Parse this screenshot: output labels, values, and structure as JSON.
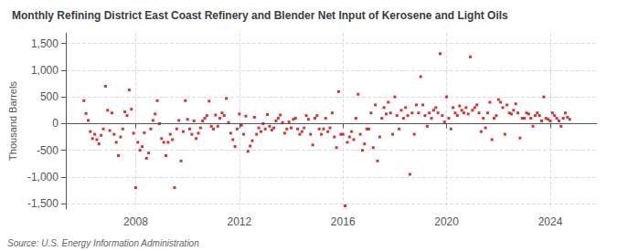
{
  "chart_data": {
    "type": "scatter",
    "title": "Monthly Refining District East Coast Refinery and Blender Net Input of Kerosene and Light Oils",
    "ylabel": "Thousand Barrels",
    "annotation": "Source: U.S. Energy Information Administration",
    "color": "#cc0000",
    "marker": "square",
    "grid": true,
    "xlim": [
      2005.3,
      2025.8
    ],
    "xticks": [
      2008,
      2012,
      2016,
      2020,
      2024
    ],
    "ylim": [
      -1600,
      1700
    ],
    "yticks": [
      {
        "value": -1500,
        "label": "-1,500"
      },
      {
        "value": -1000,
        "label": "-1,000"
      },
      -500,
      0,
      500,
      {
        "value": 1000,
        "label": "1,000"
      },
      {
        "value": 1500,
        "label": "1,500"
      }
    ],
    "x": [
      2006.0,
      2006.083,
      2006.167,
      2006.25,
      2006.333,
      2006.417,
      2006.5,
      2006.583,
      2006.667,
      2006.75,
      2006.833,
      2006.917,
      2007.0,
      2007.083,
      2007.167,
      2007.25,
      2007.333,
      2007.417,
      2007.5,
      2007.583,
      2007.667,
      2007.75,
      2007.833,
      2007.917,
      2008.0,
      2008.083,
      2008.167,
      2008.25,
      2008.333,
      2008.417,
      2008.5,
      2008.583,
      2008.667,
      2008.75,
      2008.833,
      2008.917,
      2009.0,
      2009.083,
      2009.167,
      2009.25,
      2009.333,
      2009.417,
      2009.5,
      2009.583,
      2009.667,
      2009.75,
      2009.833,
      2009.917,
      2010.0,
      2010.083,
      2010.167,
      2010.25,
      2010.333,
      2010.417,
      2010.5,
      2010.583,
      2010.667,
      2010.75,
      2010.833,
      2010.917,
      2011.0,
      2011.083,
      2011.167,
      2011.25,
      2011.333,
      2011.417,
      2011.5,
      2011.583,
      2011.667,
      2011.75,
      2011.833,
      2011.917,
      2012.0,
      2012.083,
      2012.167,
      2012.25,
      2012.333,
      2012.417,
      2012.5,
      2012.583,
      2012.667,
      2012.75,
      2012.833,
      2012.917,
      2013.0,
      2013.083,
      2013.167,
      2013.25,
      2013.333,
      2013.417,
      2013.5,
      2013.583,
      2013.667,
      2013.75,
      2013.833,
      2013.917,
      2014.0,
      2014.083,
      2014.167,
      2014.25,
      2014.333,
      2014.417,
      2014.5,
      2014.583,
      2014.667,
      2014.75,
      2014.833,
      2014.917,
      2015.0,
      2015.083,
      2015.167,
      2015.25,
      2015.333,
      2015.417,
      2015.5,
      2015.583,
      2015.667,
      2015.75,
      2015.833,
      2015.917,
      2016.0,
      2016.083,
      2016.167,
      2016.25,
      2016.333,
      2016.417,
      2016.5,
      2016.583,
      2016.667,
      2016.75,
      2016.833,
      2016.917,
      2017.0,
      2017.083,
      2017.167,
      2017.25,
      2017.333,
      2017.417,
      2017.5,
      2017.583,
      2017.667,
      2017.75,
      2017.833,
      2017.917,
      2018.0,
      2018.083,
      2018.167,
      2018.25,
      2018.333,
      2018.417,
      2018.5,
      2018.583,
      2018.667,
      2018.75,
      2018.833,
      2018.917,
      2019.0,
      2019.083,
      2019.167,
      2019.25,
      2019.333,
      2019.417,
      2019.5,
      2019.583,
      2019.667,
      2019.75,
      2019.833,
      2019.917,
      2020.0,
      2020.083,
      2020.167,
      2020.25,
      2020.333,
      2020.417,
      2020.5,
      2020.583,
      2020.667,
      2020.75,
      2020.833,
      2020.917,
      2021.0,
      2021.083,
      2021.167,
      2021.25,
      2021.333,
      2021.417,
      2021.5,
      2021.583,
      2021.667,
      2021.75,
      2021.833,
      2021.917,
      2022.0,
      2022.083,
      2022.167,
      2022.25,
      2022.333,
      2022.417,
      2022.5,
      2022.583,
      2022.667,
      2022.75,
      2022.833,
      2022.917,
      2023.0,
      2023.083,
      2023.167,
      2023.25,
      2023.333,
      2023.417,
      2023.5,
      2023.583,
      2023.667,
      2023.75,
      2023.833,
      2023.917,
      2024.0,
      2024.083,
      2024.167,
      2024.25,
      2024.333,
      2024.417,
      2024.5,
      2024.583,
      2024.667,
      2024.75
    ],
    "values": [
      430,
      190,
      60,
      -150,
      -280,
      -200,
      -300,
      -380,
      -220,
      -100,
      700,
      250,
      -130,
      200,
      -200,
      -350,
      -600,
      -250,
      -100,
      220,
      150,
      630,
      270,
      -180,
      -1200,
      -350,
      -500,
      -430,
      -170,
      -650,
      -550,
      -100,
      60,
      180,
      430,
      0,
      -280,
      -350,
      -600,
      -350,
      -200,
      -300,
      -1200,
      -100,
      60,
      -700,
      -150,
      430,
      80,
      -100,
      -200,
      50,
      -280,
      -180,
      -80,
      50,
      100,
      150,
      420,
      -50,
      -100,
      160,
      -50,
      100,
      200,
      150,
      470,
      20,
      -180,
      -300,
      -430,
      -100,
      180,
      -30,
      -200,
      140,
      -520,
      -420,
      -320,
      120,
      -200,
      -80,
      -150,
      0,
      -100,
      170,
      -50,
      -120,
      -80,
      50,
      100,
      160,
      20,
      -180,
      -100,
      30,
      -80,
      80,
      100,
      -100,
      -200,
      -150,
      -80,
      150,
      80,
      -200,
      -400,
      100,
      150,
      -100,
      -200,
      -100,
      100,
      -150,
      -80,
      200,
      -250,
      -450,
      600,
      -200,
      -200,
      -1540,
      -350,
      -250,
      -150,
      -300,
      100,
      550,
      -200,
      -500,
      -380,
      -100,
      -100,
      200,
      -450,
      350,
      -700,
      -250,
      100,
      300,
      180,
      400,
      200,
      -200,
      500,
      150,
      -100,
      250,
      100,
      300,
      150,
      -950,
      200,
      -200,
      350,
      200,
      880,
      350,
      150,
      -50,
      200,
      100,
      250,
      300,
      200,
      1310,
      150,
      30,
      500,
      100,
      -100,
      300,
      200,
      150,
      330,
      250,
      200,
      300,
      180,
      1250,
      250,
      300,
      350,
      200,
      -150,
      100,
      -80,
      200,
      400,
      -300,
      100,
      150,
      450,
      400,
      300,
      -200,
      350,
      200,
      180,
      250,
      370,
      200,
      -270,
      100,
      100,
      200,
      180,
      100,
      -50,
      150,
      200,
      150,
      50,
      500,
      100,
      80,
      50,
      200,
      150,
      100,
      50,
      -50,
      100,
      200,
      120,
      80
    ]
  }
}
